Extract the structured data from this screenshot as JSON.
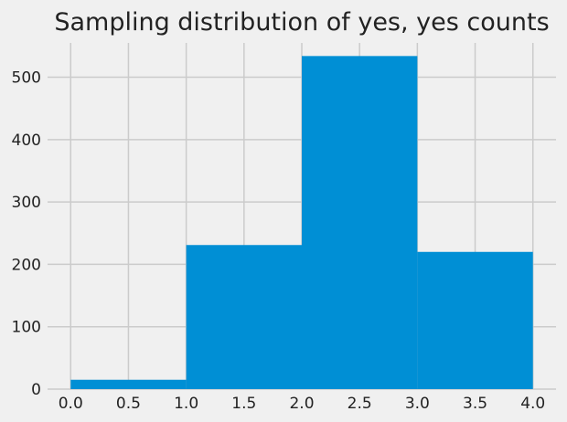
{
  "chart_data": {
    "type": "bar",
    "title": "Sampling distribution of yes, yes counts",
    "xlabel": "",
    "ylabel": "",
    "bins": [
      {
        "x0": 0,
        "x1": 1,
        "value": 15
      },
      {
        "x0": 1,
        "x1": 2,
        "value": 231
      },
      {
        "x0": 2,
        "x1": 3,
        "value": 534
      },
      {
        "x0": 3,
        "x1": 4,
        "value": 220
      }
    ],
    "xlim": [
      -0.2,
      4.2
    ],
    "ylim": [
      0,
      555
    ],
    "x_ticks": [
      "0.0",
      "0.5",
      "1.0",
      "1.5",
      "2.0",
      "2.5",
      "3.0",
      "3.5",
      "4.0"
    ],
    "y_ticks": [
      "0",
      "100",
      "200",
      "300",
      "400",
      "500"
    ],
    "grid": true,
    "bar_color": "#008fd5",
    "grid_color": "#cbcbcb",
    "background_color": "#f0f0f0"
  }
}
